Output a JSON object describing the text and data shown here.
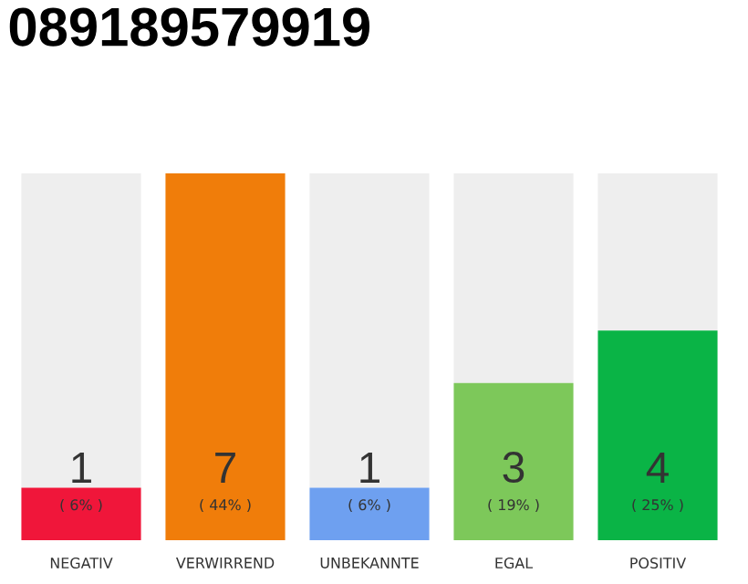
{
  "chart_data": {
    "type": "bar",
    "title": "089189579919",
    "stacked": true,
    "categories": [
      "NEGATIV",
      "VERWIRREND",
      "UNBEKANNTE",
      "EGAL",
      "POSITIV"
    ],
    "series": [
      {
        "colors": [
          "#f0163a",
          "#f07d0a",
          "#6ea0f0",
          "#7dc85a",
          "#0ab446"
        ],
        "values": [
          1,
          7,
          1,
          3,
          4
        ],
        "value_labels": [
          "1",
          "7",
          "1",
          "3",
          "4"
        ]
      },
      {
        "color": "#eeeeee",
        "values": [
          6,
          0,
          6,
          4,
          3
        ],
        "value_labels": [
          null,
          null,
          null,
          null,
          null
        ]
      }
    ],
    "annotations": [
      "( 6% )",
      "( 44% )",
      "( 6% )",
      "( 19% )",
      "( 25% )"
    ],
    "tick_labels": "x"
  }
}
